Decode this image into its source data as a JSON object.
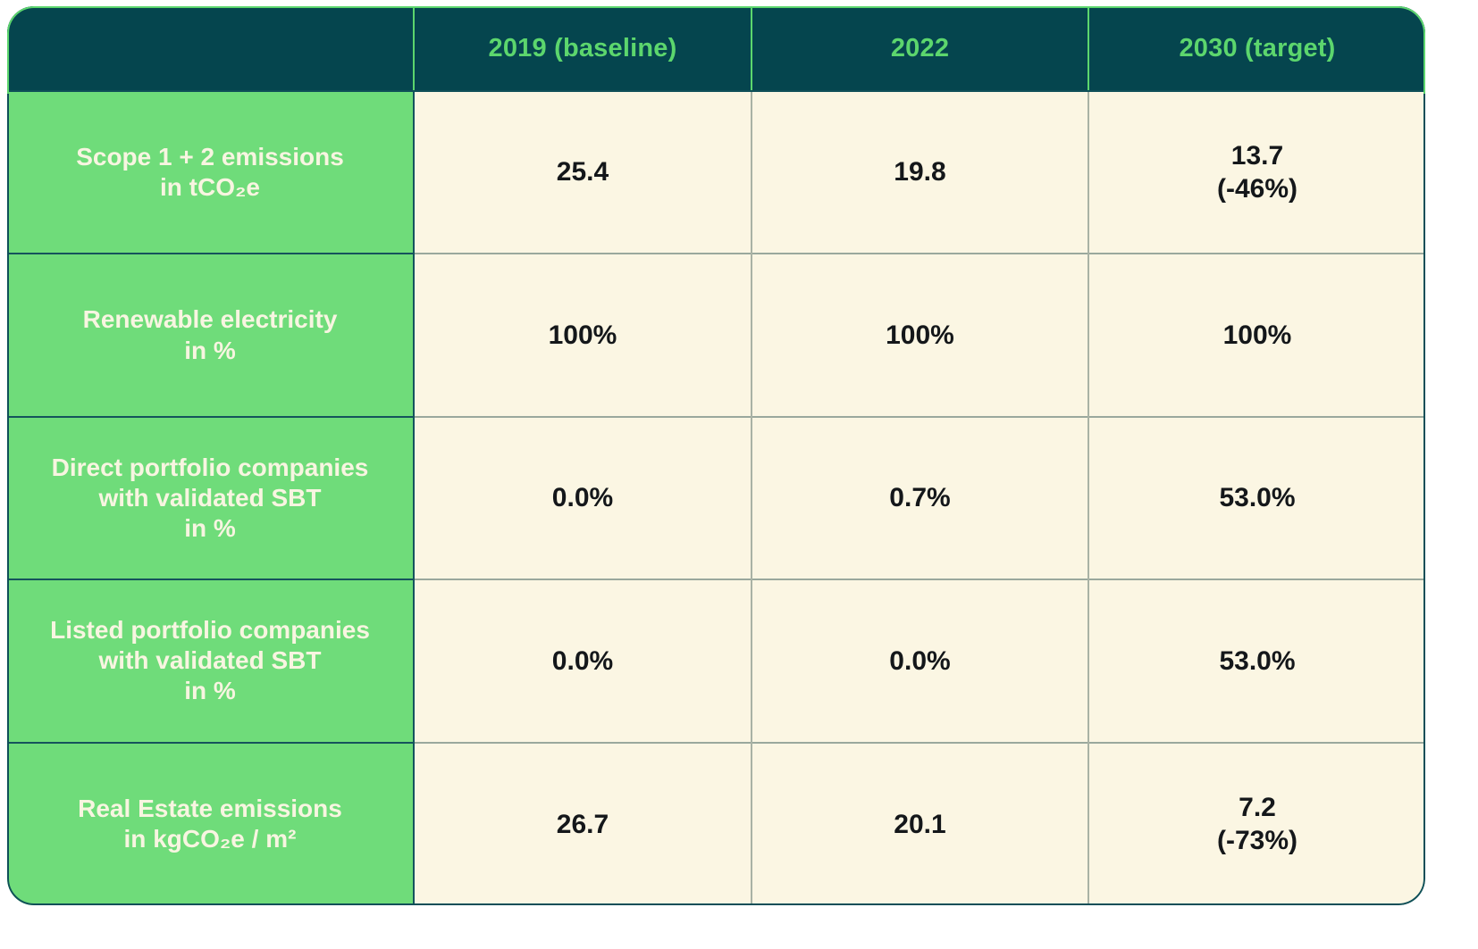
{
  "table": {
    "columns": [
      {
        "label": ""
      },
      {
        "label": "2019 (baseline)"
      },
      {
        "label": "2022"
      },
      {
        "label": "2030 (target)"
      }
    ],
    "rows": [
      {
        "label_lines": [
          "Scope 1 + 2 emissions",
          "in tCO₂e"
        ],
        "values": [
          [
            "25.4"
          ],
          [
            "19.8"
          ],
          [
            "13.7",
            "(-46%)"
          ]
        ]
      },
      {
        "label_lines": [
          "Renewable electricity",
          "in %"
        ],
        "values": [
          [
            "100%"
          ],
          [
            "100%"
          ],
          [
            "100%"
          ]
        ]
      },
      {
        "label_lines": [
          "Direct portfolio companies",
          "with validated SBT",
          "in %"
        ],
        "values": [
          [
            "0.0%"
          ],
          [
            "0.7%"
          ],
          [
            "53.0%"
          ]
        ]
      },
      {
        "label_lines": [
          "Listed portfolio companies",
          "with validated SBT",
          "in %"
        ],
        "values": [
          [
            "0.0%"
          ],
          [
            "0.0%"
          ],
          [
            "53.0%"
          ]
        ]
      },
      {
        "label_lines": [
          "Real Estate emissions",
          "in kgCO₂e / m²"
        ],
        "values": [
          [
            "26.7"
          ],
          [
            "20.1"
          ],
          [
            "7.2",
            "(-73%)"
          ]
        ]
      }
    ]
  },
  "chart_data": {
    "type": "table",
    "title": "",
    "columns": [
      "",
      "2019 (baseline)",
      "2022",
      "2030 (target)"
    ],
    "rows": [
      {
        "metric": "Scope 1 + 2 emissions in tCO₂e",
        "values": [
          "25.4",
          "19.8",
          "13.7 (-46%)"
        ]
      },
      {
        "metric": "Renewable electricity in %",
        "values": [
          "100%",
          "100%",
          "100%"
        ]
      },
      {
        "metric": "Direct portfolio companies with validated SBT in %",
        "values": [
          "0.0%",
          "0.7%",
          "53.0%"
        ]
      },
      {
        "metric": "Listed portfolio companies with validated SBT in %",
        "values": [
          "0.0%",
          "0.0%",
          "53.0%"
        ]
      },
      {
        "metric": "Real Estate emissions in kgCO₂e / m²",
        "values": [
          "26.7",
          "20.1",
          "7.2 (-73%)"
        ]
      }
    ],
    "legend_position": "none",
    "grid": true
  },
  "colors": {
    "header_bg": "#05454E",
    "header_text": "#5CD66D",
    "label_bg": "#6FDC7A",
    "label_text": "#F8F5E1",
    "value_bg": "#FBF6E3",
    "value_text": "#14171A",
    "grid_light": "#9AA89D",
    "grid_dark": "#15535C",
    "outer_border": "#0E4F58",
    "header_border": "#5CD66D"
  }
}
